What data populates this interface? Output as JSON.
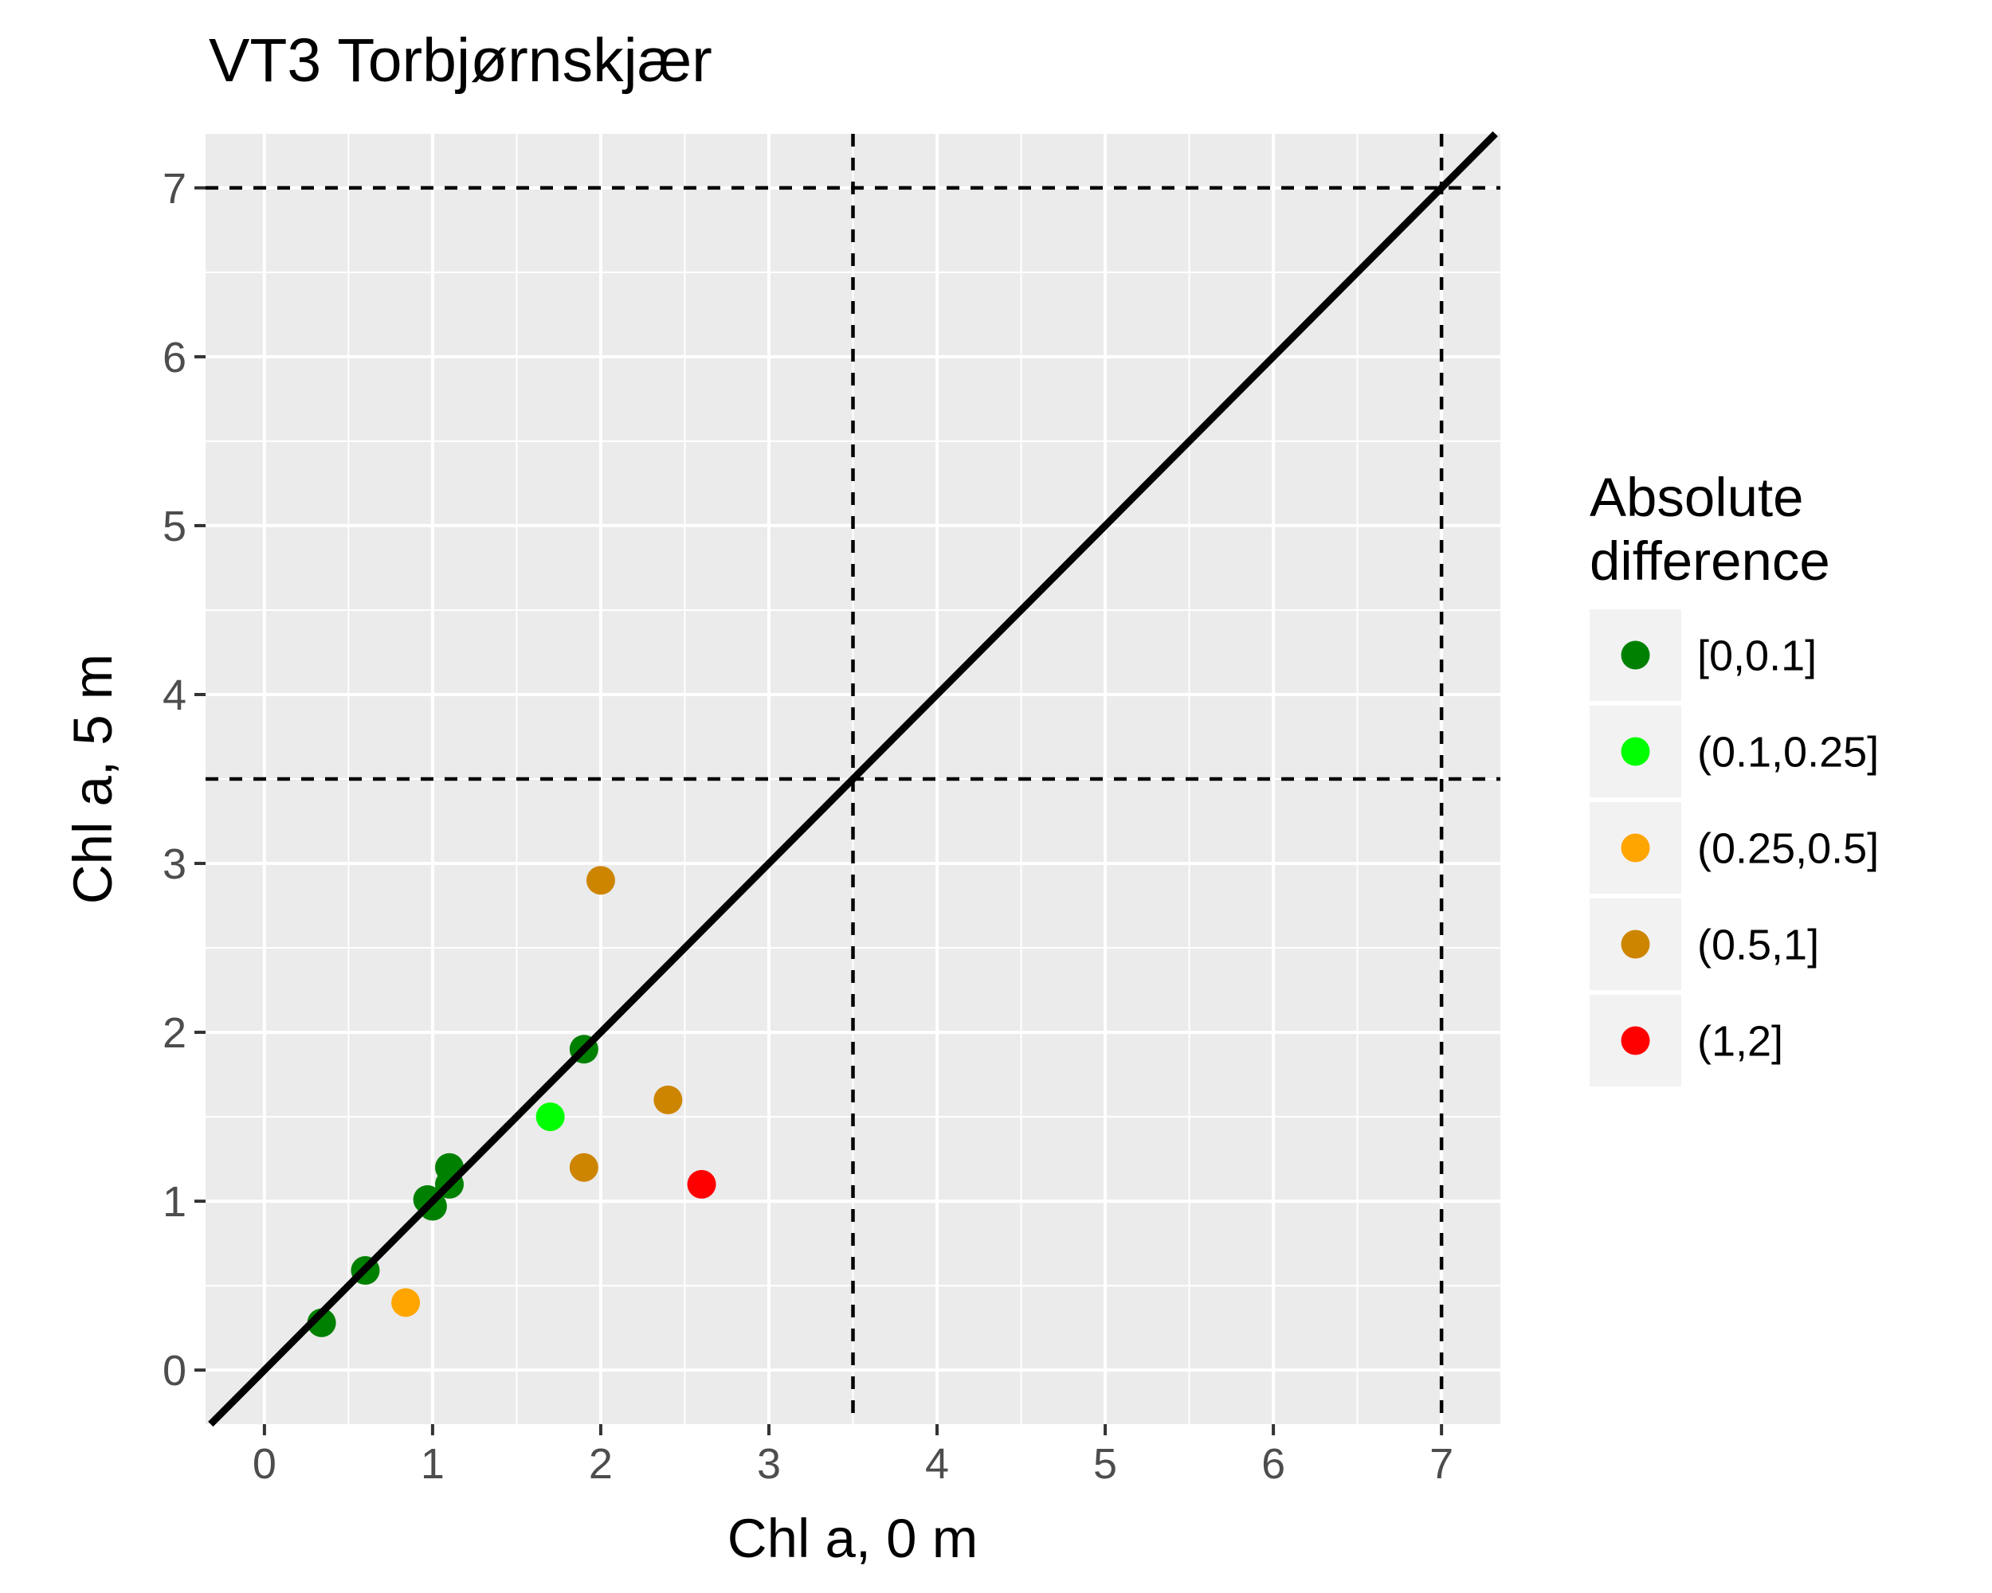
{
  "chart_data": {
    "type": "scatter",
    "title": "VT3 Torbjørnskjær",
    "xlabel": "Chl a, 0 m",
    "ylabel": "Chl a, 5 m",
    "xlim": [
      -0.35,
      7.35
    ],
    "ylim": [
      -0.32,
      7.32
    ],
    "x_ticks": [
      "0",
      "1",
      "2",
      "3",
      "4",
      "5",
      "6",
      "7"
    ],
    "y_ticks": [
      "0",
      "1",
      "2",
      "3",
      "4",
      "5",
      "6",
      "7"
    ],
    "grid": true,
    "panel_background": "#ebebeb",
    "reference_line": {
      "type": "identity",
      "label": "y = x",
      "color": "#000000"
    },
    "threshold_lines": {
      "x": [
        3.5,
        7
      ],
      "y": [
        3.5,
        7
      ],
      "style": "dashed"
    },
    "legend": {
      "title_line1": "Absolute",
      "title_line2": "difference",
      "placement": "right",
      "entries": [
        {
          "label": "[0,0.1]",
          "color": "#008000"
        },
        {
          "label": "(0.1,0.25]",
          "color": "#00ff00"
        },
        {
          "label": "(0.25,0.5]",
          "color": "#ffa500"
        },
        {
          "label": "(0.5,1]",
          "color": "#cd8500"
        },
        {
          "label": "(1,2]",
          "color": "#ff0000"
        }
      ]
    },
    "points": [
      {
        "x": 0.34,
        "y": 0.28,
        "group": "[0,0.1]"
      },
      {
        "x": 0.6,
        "y": 0.59,
        "group": "[0,0.1]"
      },
      {
        "x": 0.84,
        "y": 0.4,
        "group": "(0.25,0.5]"
      },
      {
        "x": 0.97,
        "y": 1.01,
        "group": "[0,0.1]"
      },
      {
        "x": 1.0,
        "y": 0.97,
        "group": "[0,0.1]"
      },
      {
        "x": 1.1,
        "y": 1.1,
        "group": "[0,0.1]"
      },
      {
        "x": 1.1,
        "y": 1.2,
        "group": "[0,0.1]"
      },
      {
        "x": 1.7,
        "y": 1.5,
        "group": "(0.1,0.25]"
      },
      {
        "x": 1.9,
        "y": 1.9,
        "group": "[0,0.1]"
      },
      {
        "x": 1.9,
        "y": 1.2,
        "group": "(0.5,1]"
      },
      {
        "x": 2.0,
        "y": 2.9,
        "group": "(0.5,1]"
      },
      {
        "x": 2.4,
        "y": 1.6,
        "group": "(0.5,1]"
      },
      {
        "x": 2.6,
        "y": 1.1,
        "group": "(1,2]"
      }
    ]
  }
}
